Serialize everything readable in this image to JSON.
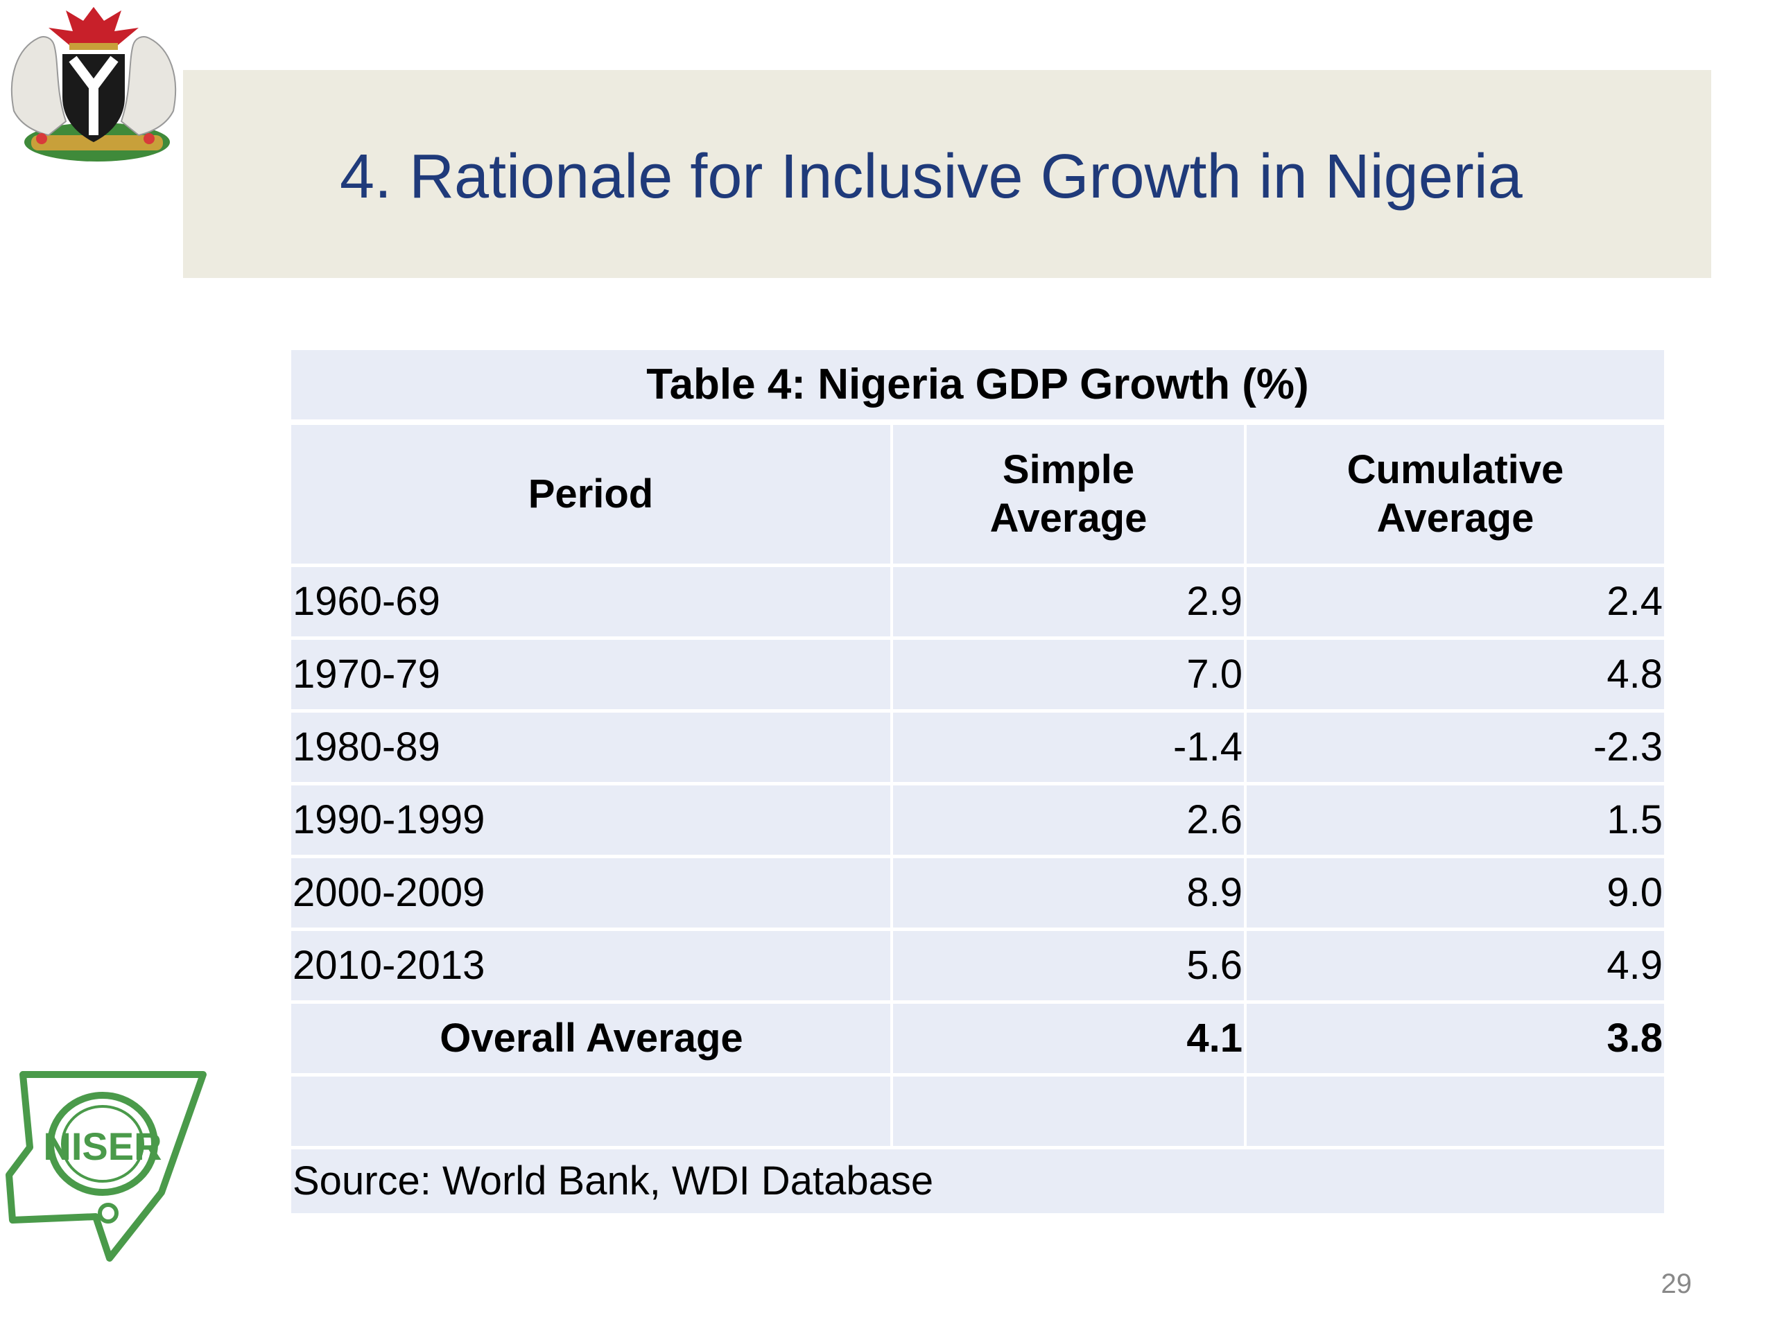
{
  "slide": {
    "title": "4. Rationale for Inclusive Growth in Nigeria",
    "page_number": "29"
  },
  "table": {
    "caption": "Table 4: Nigeria GDP Growth (%)",
    "headers": {
      "period": "Period",
      "simple_line1": "Simple",
      "simple_line2": "Average",
      "cumulative_line1": "Cumulative",
      "cumulative_line2": "Average"
    },
    "rows": [
      {
        "period": "1960-69",
        "simple": "2.9",
        "cumulative": "2.4"
      },
      {
        "period": "1970-79",
        "simple": "7.0",
        "cumulative": "4.8"
      },
      {
        "period": "1980-89",
        "simple": "-1.4",
        "cumulative": "-2.3"
      },
      {
        "period": "1990-1999",
        "simple": "2.6",
        "cumulative": "1.5"
      },
      {
        "period": "2000-2009",
        "simple": "8.9",
        "cumulative": "9.0"
      },
      {
        "period": "2010-2013",
        "simple": "5.6",
        "cumulative": "4.9"
      }
    ],
    "overall": {
      "label": "Overall Average",
      "simple": "4.1",
      "cumulative": "3.8"
    },
    "source": "Source: World Bank, WDI Database"
  },
  "logos": {
    "coat_of_arms_icon": "nigeria-coat-of-arms-icon",
    "niser_logo_text": "NISER",
    "niser_color": "#4a9a4a"
  },
  "colors": {
    "title": "#1f3a7a",
    "title_band": "#edebe0",
    "table_cell": "#e8ecf6"
  }
}
